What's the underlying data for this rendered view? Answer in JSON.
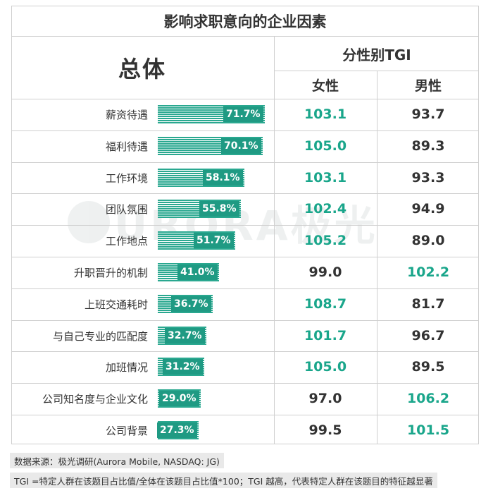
{
  "title": "影响求职意向的企业因素",
  "headers": {
    "overall": "总体",
    "tgi": "分性别TGI",
    "female": "女性",
    "male": "男性"
  },
  "watermark": "URORA极光",
  "chart_data": {
    "type": "bar",
    "title": "影响求职意向的企业因素",
    "categories": [
      "薪资待遇",
      "福利待遇",
      "工作环境",
      "团队氛围",
      "工作地点",
      "升职晋升的机制",
      "上班交通耗时",
      "与自己专业的匹配度",
      "加班情况",
      "公司知名度与企业文化",
      "公司背景"
    ],
    "series": [
      {
        "name": "总体",
        "values": [
          71.7,
          70.1,
          58.1,
          55.8,
          51.7,
          41.0,
          36.7,
          32.7,
          31.2,
          29.0,
          27.3
        ]
      }
    ],
    "value_labels": [
      "71.7%",
      "70.1%",
      "58.1%",
      "55.8%",
      "51.7%",
      "41.0%",
      "36.7%",
      "32.7%",
      "31.2%",
      "29.0%",
      "27.3%"
    ],
    "tgi": {
      "female": [
        "103.1",
        "105.0",
        "103.1",
        "102.4",
        "105.2",
        "99.0",
        "108.7",
        "101.7",
        "105.0",
        "97.0",
        "99.5"
      ],
      "male": [
        "93.7",
        "89.3",
        "93.3",
        "94.9",
        "89.0",
        "102.2",
        "81.7",
        "96.7",
        "89.5",
        "106.2",
        "101.5"
      ]
    },
    "highlight_threshold": 100,
    "colors": {
      "bar": "#2aa890",
      "highlight": "#1aa68b",
      "normal": "#333333"
    }
  },
  "footer": {
    "source": "数据来源：极光调研(Aurora Mobile, NASDAQ: JG)",
    "note": "TGI =特定人群在该题目占比值/全体在该题目占比值*100；TGI 越高，代表特定人群在该题目的特征越显著"
  }
}
